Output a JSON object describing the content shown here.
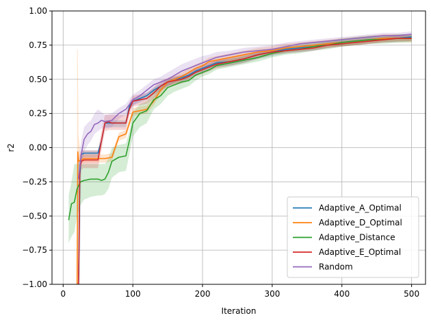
{
  "chart_data": {
    "type": "line",
    "title": "",
    "xlabel": "Iteration",
    "ylabel": "r2",
    "xlim": [
      -16,
      520
    ],
    "ylim": [
      -1.0,
      1.0
    ],
    "xticks": [
      0,
      100,
      200,
      300,
      400,
      500
    ],
    "yticks": [
      -1.0,
      -0.75,
      -0.5,
      -0.25,
      0.0,
      0.25,
      0.5,
      0.75,
      1.0
    ],
    "xtick_labels": [
      "0",
      "100",
      "200",
      "300",
      "400",
      "500"
    ],
    "ytick_labels": [
      "−1.00",
      "−0.75",
      "−0.50",
      "−0.25",
      "0.00",
      "0.25",
      "0.50",
      "0.75",
      "1.00"
    ],
    "grid": true,
    "legend_position": "lower-right",
    "series": [
      {
        "name": "Adaptive_A_Optimal",
        "color": "#1f77b4",
        "x": [
          22,
          24,
          26,
          30,
          40,
          50,
          55,
          60,
          80,
          90,
          95,
          100,
          110,
          120,
          130,
          140,
          150,
          160,
          170,
          180,
          190,
          200,
          210,
          220,
          240,
          260,
          280,
          300,
          320,
          340,
          360,
          380,
          400,
          420,
          440,
          460,
          480,
          500
        ],
        "y": [
          -1.0,
          -0.2,
          -0.05,
          -0.04,
          -0.04,
          -0.04,
          0.05,
          0.18,
          0.18,
          0.18,
          0.3,
          0.34,
          0.36,
          0.38,
          0.42,
          0.45,
          0.48,
          0.5,
          0.51,
          0.53,
          0.56,
          0.58,
          0.6,
          0.62,
          0.63,
          0.65,
          0.68,
          0.7,
          0.72,
          0.73,
          0.74,
          0.76,
          0.77,
          0.78,
          0.79,
          0.8,
          0.8,
          0.81
        ],
        "band_upper": [
          -0.1,
          -0.1,
          -0.03,
          -0.02,
          -0.02,
          -0.02,
          0.07,
          0.2,
          0.2,
          0.2,
          0.32,
          0.36,
          0.38,
          0.4,
          0.44,
          0.47,
          0.5,
          0.52,
          0.53,
          0.55,
          0.58,
          0.6,
          0.62,
          0.64,
          0.65,
          0.67,
          0.7,
          0.72,
          0.74,
          0.75,
          0.76,
          0.78,
          0.79,
          0.8,
          0.81,
          0.82,
          0.82,
          0.83
        ],
        "band_lower": [
          -1.0,
          -1.0,
          -0.08,
          -0.07,
          -0.07,
          -0.07,
          0.02,
          0.15,
          0.15,
          0.15,
          0.27,
          0.31,
          0.33,
          0.35,
          0.39,
          0.42,
          0.45,
          0.47,
          0.48,
          0.5,
          0.53,
          0.55,
          0.57,
          0.59,
          0.6,
          0.62,
          0.65,
          0.67,
          0.69,
          0.7,
          0.71,
          0.73,
          0.74,
          0.75,
          0.76,
          0.77,
          0.77,
          0.78
        ]
      },
      {
        "name": "Adaptive_D_Optimal",
        "color": "#ff7f0e",
        "x": [
          20,
          21,
          22,
          25,
          30,
          40,
          50,
          60,
          70,
          80,
          90,
          100,
          110,
          120,
          130,
          140,
          150,
          160,
          170,
          180,
          190,
          200,
          210,
          220,
          240,
          260,
          280,
          300,
          320,
          340,
          360,
          380,
          400,
          420,
          440,
          460,
          480,
          500
        ],
        "y": [
          -1.0,
          -0.03,
          -0.1,
          -0.09,
          -0.08,
          -0.08,
          -0.08,
          -0.08,
          -0.07,
          0.08,
          0.1,
          0.26,
          0.27,
          0.28,
          0.34,
          0.42,
          0.48,
          0.5,
          0.52,
          0.55,
          0.58,
          0.6,
          0.63,
          0.64,
          0.66,
          0.68,
          0.7,
          0.71,
          0.73,
          0.74,
          0.75,
          0.76,
          0.77,
          0.78,
          0.79,
          0.8,
          0.8,
          0.8
        ],
        "band_upper": [
          0.72,
          0.72,
          0.1,
          -0.06,
          -0.05,
          -0.05,
          -0.05,
          -0.05,
          -0.04,
          0.11,
          0.13,
          0.29,
          0.3,
          0.31,
          0.37,
          0.45,
          0.51,
          0.53,
          0.55,
          0.58,
          0.61,
          0.63,
          0.66,
          0.67,
          0.69,
          0.71,
          0.73,
          0.74,
          0.76,
          0.77,
          0.78,
          0.79,
          0.8,
          0.81,
          0.82,
          0.83,
          0.83,
          0.83
        ],
        "band_lower": [
          -1.0,
          -1.0,
          -0.15,
          -0.12,
          -0.11,
          -0.11,
          -0.11,
          -0.11,
          -0.1,
          0.05,
          0.07,
          0.23,
          0.24,
          0.25,
          0.31,
          0.39,
          0.45,
          0.47,
          0.49,
          0.52,
          0.55,
          0.57,
          0.6,
          0.61,
          0.63,
          0.65,
          0.67,
          0.68,
          0.7,
          0.71,
          0.72,
          0.73,
          0.74,
          0.75,
          0.76,
          0.77,
          0.77,
          0.77
        ]
      },
      {
        "name": "Adaptive_Distance",
        "color": "#2ca02c",
        "x": [
          8,
          12,
          16,
          20,
          25,
          30,
          40,
          50,
          55,
          60,
          65,
          70,
          80,
          90,
          95,
          100,
          110,
          120,
          130,
          140,
          150,
          160,
          170,
          180,
          190,
          200,
          210,
          220,
          240,
          260,
          280,
          300,
          320,
          340,
          360,
          380,
          400,
          420,
          440,
          460,
          480,
          500
        ],
        "y": [
          -0.53,
          -0.41,
          -0.4,
          -0.3,
          -0.25,
          -0.24,
          -0.23,
          -0.23,
          -0.24,
          -0.23,
          -0.18,
          -0.1,
          -0.07,
          -0.06,
          0.05,
          0.18,
          0.25,
          0.27,
          0.35,
          0.38,
          0.44,
          0.46,
          0.48,
          0.49,
          0.53,
          0.55,
          0.57,
          0.6,
          0.62,
          0.64,
          0.66,
          0.69,
          0.71,
          0.72,
          0.74,
          0.75,
          0.77,
          0.78,
          0.79,
          0.79,
          0.8,
          0.8
        ],
        "band_upper": [
          -0.35,
          -0.25,
          -0.12,
          -0.12,
          -0.12,
          -0.12,
          -0.12,
          -0.12,
          -0.12,
          -0.12,
          -0.08,
          0.0,
          0.02,
          0.03,
          0.12,
          0.26,
          0.32,
          0.34,
          0.42,
          0.44,
          0.49,
          0.51,
          0.52,
          0.53,
          0.56,
          0.58,
          0.6,
          0.63,
          0.65,
          0.67,
          0.69,
          0.72,
          0.74,
          0.75,
          0.77,
          0.78,
          0.8,
          0.81,
          0.82,
          0.82,
          0.83,
          0.83
        ],
        "band_lower": [
          -0.7,
          -0.65,
          -0.62,
          -0.5,
          -0.42,
          -0.38,
          -0.36,
          -0.35,
          -0.35,
          -0.34,
          -0.3,
          -0.22,
          -0.18,
          -0.17,
          -0.05,
          0.08,
          0.15,
          0.18,
          0.28,
          0.32,
          0.38,
          0.41,
          0.43,
          0.45,
          0.49,
          0.52,
          0.54,
          0.57,
          0.59,
          0.61,
          0.63,
          0.66,
          0.68,
          0.69,
          0.71,
          0.72,
          0.74,
          0.75,
          0.76,
          0.76,
          0.77,
          0.77
        ]
      },
      {
        "name": "Adaptive_E_Optimal",
        "color": "#d62728",
        "x": [
          22,
          23,
          24,
          26,
          30,
          35,
          40,
          50,
          55,
          60,
          65,
          70,
          80,
          90,
          95,
          100,
          110,
          120,
          130,
          140,
          150,
          160,
          170,
          180,
          190,
          200,
          210,
          220,
          240,
          260,
          280,
          300,
          320,
          340,
          360,
          380,
          400,
          420,
          440,
          460,
          480,
          500
        ],
        "y": [
          -1.0,
          -0.7,
          -0.15,
          -0.1,
          -0.09,
          -0.09,
          -0.09,
          -0.09,
          0.05,
          0.18,
          0.19,
          0.18,
          0.18,
          0.18,
          0.28,
          0.34,
          0.35,
          0.36,
          0.4,
          0.45,
          0.48,
          0.49,
          0.5,
          0.52,
          0.55,
          0.57,
          0.59,
          0.61,
          0.63,
          0.65,
          0.68,
          0.7,
          0.71,
          0.72,
          0.73,
          0.75,
          0.76,
          0.77,
          0.78,
          0.79,
          0.8,
          0.8
        ],
        "band_upper": [
          -0.5,
          -0.5,
          -0.05,
          -0.02,
          -0.02,
          -0.02,
          -0.02,
          -0.02,
          0.12,
          0.24,
          0.24,
          0.24,
          0.24,
          0.24,
          0.33,
          0.38,
          0.39,
          0.4,
          0.44,
          0.49,
          0.51,
          0.52,
          0.53,
          0.55,
          0.58,
          0.6,
          0.62,
          0.64,
          0.66,
          0.68,
          0.71,
          0.72,
          0.73,
          0.74,
          0.75,
          0.77,
          0.78,
          0.79,
          0.8,
          0.81,
          0.82,
          0.82
        ],
        "band_lower": [
          -1.0,
          -1.0,
          -0.25,
          -0.16,
          -0.15,
          -0.15,
          -0.15,
          -0.15,
          -0.02,
          0.12,
          0.13,
          0.13,
          0.13,
          0.13,
          0.23,
          0.3,
          0.31,
          0.32,
          0.36,
          0.41,
          0.45,
          0.46,
          0.47,
          0.49,
          0.52,
          0.54,
          0.56,
          0.58,
          0.6,
          0.62,
          0.65,
          0.68,
          0.69,
          0.7,
          0.71,
          0.73,
          0.74,
          0.75,
          0.76,
          0.77,
          0.78,
          0.78
        ]
      },
      {
        "name": "Random",
        "color": "#9467bd",
        "x": [
          22,
          26,
          30,
          35,
          40,
          45,
          50,
          55,
          60,
          70,
          80,
          90,
          100,
          110,
          120,
          130,
          140,
          150,
          160,
          170,
          180,
          190,
          200,
          210,
          220,
          240,
          260,
          280,
          300,
          320,
          340,
          360,
          380,
          400,
          420,
          440,
          460,
          480,
          500
        ],
        "y": [
          -0.23,
          -0.05,
          0.06,
          0.1,
          0.12,
          0.17,
          0.18,
          0.2,
          0.19,
          0.2,
          0.25,
          0.28,
          0.35,
          0.38,
          0.42,
          0.46,
          0.48,
          0.5,
          0.53,
          0.56,
          0.58,
          0.6,
          0.62,
          0.64,
          0.66,
          0.68,
          0.7,
          0.71,
          0.72,
          0.74,
          0.76,
          0.77,
          0.78,
          0.79,
          0.8,
          0.81,
          0.82,
          0.82,
          0.83
        ],
        "band_upper": [
          -0.1,
          0.05,
          0.15,
          0.18,
          0.2,
          0.25,
          0.28,
          0.26,
          0.24,
          0.25,
          0.29,
          0.32,
          0.39,
          0.42,
          0.46,
          0.5,
          0.52,
          0.55,
          0.58,
          0.61,
          0.63,
          0.65,
          0.67,
          0.68,
          0.7,
          0.71,
          0.73,
          0.74,
          0.75,
          0.77,
          0.78,
          0.79,
          0.8,
          0.81,
          0.82,
          0.83,
          0.84,
          0.84,
          0.85
        ],
        "band_lower": [
          -0.35,
          -0.15,
          -0.03,
          0.02,
          0.05,
          0.1,
          0.12,
          0.14,
          0.14,
          0.15,
          0.21,
          0.24,
          0.31,
          0.34,
          0.38,
          0.42,
          0.44,
          0.45,
          0.48,
          0.51,
          0.53,
          0.55,
          0.57,
          0.6,
          0.62,
          0.65,
          0.67,
          0.68,
          0.69,
          0.71,
          0.74,
          0.75,
          0.76,
          0.77,
          0.78,
          0.79,
          0.8,
          0.8,
          0.81
        ]
      }
    ]
  }
}
